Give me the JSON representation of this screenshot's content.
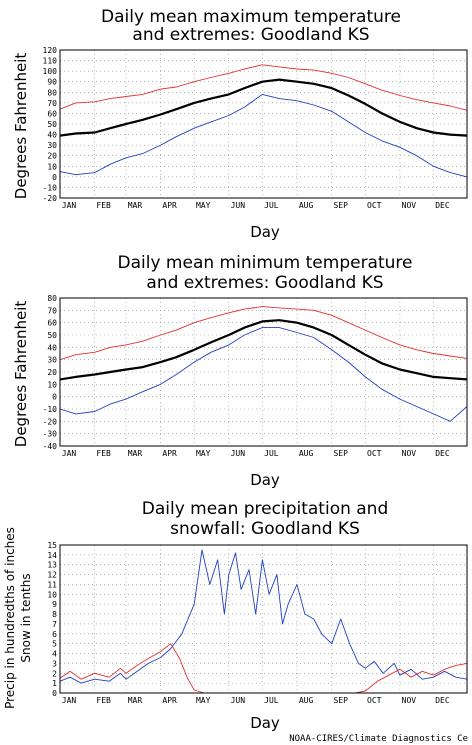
{
  "footer": {
    "credit": "NOAA-CIRES/Climate Diagnostics Ce"
  },
  "chart_data": [
    {
      "id": "max",
      "type": "line",
      "title": [
        "Daily mean maximum temperature",
        "and extremes: Goodland KS"
      ],
      "ylabel": [
        "Degrees Fahrenheit"
      ],
      "xlabel": "Day",
      "categories": [
        "JAN",
        "FEB",
        "MAR",
        "APR",
        "MAY",
        "JUN",
        "JUL",
        "AUG",
        "SEP",
        "OCT",
        "NOV",
        "DEC"
      ],
      "month_start_days": [
        1,
        32,
        60,
        91,
        121,
        152,
        182,
        213,
        244,
        274,
        305,
        335
      ],
      "ylim": [
        -20,
        120
      ],
      "yticks": [
        -20,
        -10,
        0,
        10,
        20,
        30,
        40,
        50,
        60,
        70,
        80,
        90,
        100,
        110,
        120
      ],
      "grid": true,
      "series": [
        {
          "role": "record-high",
          "color": "#e03030",
          "width": 0.9,
          "x": [
            1,
            15,
            32,
            46,
            60,
            75,
            91,
            105,
            121,
            136,
            152,
            166,
            182,
            197,
            213,
            228,
            244,
            259,
            274,
            289,
            305,
            320,
            335,
            350,
            365
          ],
          "values": [
            64,
            70,
            71,
            74,
            76,
            78,
            83,
            85,
            90,
            94,
            98,
            102,
            106,
            104,
            102,
            101,
            98,
            94,
            88,
            82,
            77,
            73,
            70,
            67,
            63
          ]
        },
        {
          "role": "mean",
          "color": "#000000",
          "width": 2.2,
          "x": [
            1,
            15,
            32,
            46,
            60,
            75,
            91,
            105,
            121,
            136,
            152,
            166,
            182,
            197,
            213,
            228,
            244,
            259,
            274,
            289,
            305,
            320,
            335,
            350,
            365
          ],
          "values": [
            39,
            41,
            42,
            46,
            50,
            54,
            59,
            64,
            70,
            74,
            78,
            84,
            90,
            92,
            90,
            88,
            84,
            77,
            69,
            60,
            52,
            46,
            42,
            40,
            39
          ]
        },
        {
          "role": "record-low",
          "color": "#2040c0",
          "width": 0.9,
          "x": [
            1,
            15,
            32,
            46,
            60,
            75,
            91,
            105,
            121,
            136,
            152,
            166,
            182,
            197,
            213,
            228,
            244,
            259,
            274,
            289,
            305,
            320,
            335,
            350,
            365
          ],
          "values": [
            5,
            2,
            4,
            12,
            18,
            22,
            30,
            38,
            46,
            52,
            58,
            66,
            78,
            74,
            72,
            68,
            62,
            52,
            42,
            34,
            28,
            20,
            10,
            4,
            0
          ]
        }
      ]
    },
    {
      "id": "min",
      "type": "line",
      "title": [
        "Daily mean minimum temperature",
        "and extremes: Goodland KS"
      ],
      "ylabel": [
        "Degrees Fahrenheit"
      ],
      "xlabel": "Day",
      "categories": [
        "JAN",
        "FEB",
        "MAR",
        "APR",
        "MAY",
        "JUN",
        "JUL",
        "AUG",
        "SEP",
        "OCT",
        "NOV",
        "DEC"
      ],
      "month_start_days": [
        1,
        32,
        60,
        91,
        121,
        152,
        182,
        213,
        244,
        274,
        305,
        335
      ],
      "ylim": [
        -40,
        80
      ],
      "yticks": [
        -40,
        -30,
        -20,
        -10,
        0,
        10,
        20,
        30,
        40,
        50,
        60,
        70,
        80
      ],
      "grid": true,
      "series": [
        {
          "role": "record-high",
          "color": "#e03030",
          "width": 0.9,
          "x": [
            1,
            15,
            32,
            46,
            60,
            75,
            91,
            105,
            121,
            136,
            152,
            166,
            182,
            197,
            213,
            228,
            244,
            259,
            274,
            289,
            305,
            320,
            335,
            350,
            365
          ],
          "values": [
            30,
            34,
            36,
            40,
            42,
            45,
            50,
            54,
            60,
            64,
            68,
            71,
            73,
            72,
            71,
            70,
            66,
            60,
            54,
            48,
            42,
            38,
            35,
            33,
            31
          ]
        },
        {
          "role": "mean",
          "color": "#000000",
          "width": 2.2,
          "x": [
            1,
            15,
            32,
            46,
            60,
            75,
            91,
            105,
            121,
            136,
            152,
            166,
            182,
            197,
            213,
            228,
            244,
            259,
            274,
            289,
            305,
            320,
            335,
            350,
            365
          ],
          "values": [
            14,
            16,
            18,
            20,
            22,
            24,
            28,
            32,
            38,
            44,
            50,
            56,
            61,
            62,
            60,
            56,
            50,
            42,
            34,
            27,
            22,
            19,
            16,
            15,
            14
          ]
        },
        {
          "role": "record-low",
          "color": "#2040c0",
          "width": 0.9,
          "x": [
            1,
            15,
            32,
            46,
            60,
            75,
            91,
            105,
            121,
            136,
            152,
            166,
            182,
            197,
            213,
            228,
            244,
            259,
            274,
            289,
            305,
            320,
            335,
            350,
            365
          ],
          "values": [
            -10,
            -14,
            -12,
            -6,
            -2,
            4,
            10,
            18,
            28,
            36,
            42,
            50,
            56,
            56,
            52,
            48,
            38,
            28,
            16,
            6,
            -2,
            -8,
            -14,
            -20,
            -8
          ]
        }
      ]
    },
    {
      "id": "precip",
      "type": "line",
      "title": [
        "Daily mean precipitation and",
        "snowfall: Goodland KS"
      ],
      "ylabel": [
        "Precip in hundredths of inches",
        "Snow in tenths"
      ],
      "xlabel": "Day",
      "categories": [
        "JAN",
        "FEB",
        "MAR",
        "APR",
        "MAY",
        "JUN",
        "JUL",
        "AUG",
        "SEP",
        "OCT",
        "NOV",
        "DEC"
      ],
      "month_start_days": [
        1,
        32,
        60,
        91,
        121,
        152,
        182,
        213,
        244,
        274,
        305,
        335
      ],
      "ylim": [
        0,
        15
      ],
      "yticks": [
        0,
        1,
        2,
        3,
        4,
        5,
        6,
        7,
        8,
        9,
        10,
        11,
        12,
        13,
        14,
        15
      ],
      "grid": true,
      "series": [
        {
          "role": "precipitation",
          "color": "#2040c0",
          "width": 0.9,
          "x": [
            1,
            10,
            20,
            32,
            45,
            55,
            60,
            70,
            80,
            91,
            100,
            110,
            121,
            128,
            135,
            142,
            148,
            152,
            158,
            163,
            170,
            176,
            182,
            188,
            195,
            200,
            205,
            213,
            220,
            228,
            235,
            244,
            252,
            260,
            268,
            274,
            282,
            290,
            300,
            305,
            315,
            325,
            335,
            345,
            355,
            365
          ],
          "values": [
            1.2,
            1.6,
            1.0,
            1.4,
            1.2,
            2.0,
            1.4,
            2.2,
            3.0,
            3.6,
            4.5,
            6.0,
            9.0,
            14.5,
            11.0,
            13.5,
            8.0,
            12.0,
            14.2,
            10.5,
            12.5,
            8.0,
            13.5,
            10.0,
            12.0,
            7.0,
            9.0,
            11.0,
            8.0,
            7.5,
            6.0,
            5.0,
            7.5,
            5.0,
            3.0,
            2.5,
            3.2,
            2.0,
            3.0,
            1.8,
            2.4,
            1.4,
            1.6,
            2.2,
            1.6,
            1.4
          ]
        },
        {
          "role": "snowfall",
          "color": "#e03030",
          "width": 0.9,
          "x": [
            1,
            10,
            20,
            32,
            45,
            55,
            60,
            70,
            80,
            91,
            100,
            108,
            115,
            121,
            130,
            150,
            200,
            244,
            265,
            274,
            285,
            295,
            305,
            315,
            325,
            335,
            345,
            355,
            365
          ],
          "values": [
            1.5,
            2.2,
            1.4,
            2.0,
            1.6,
            2.5,
            2.0,
            2.8,
            3.5,
            4.2,
            5.0,
            3.5,
            1.5,
            0.3,
            0.0,
            0.0,
            0.0,
            0.0,
            0.0,
            0.2,
            1.2,
            1.8,
            2.4,
            1.6,
            2.2,
            1.8,
            2.4,
            2.8,
            3.0
          ]
        }
      ]
    }
  ]
}
